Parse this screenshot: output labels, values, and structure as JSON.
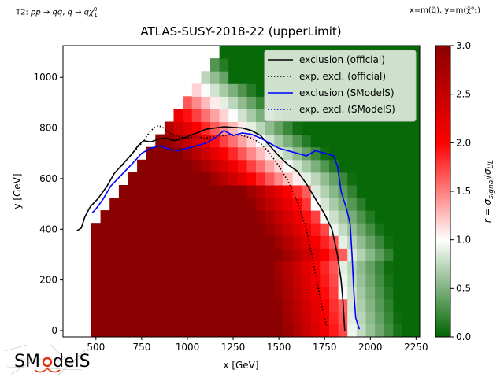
{
  "figure": {
    "process_note": "T2: pp → q̃q̃, q̃ → qχ̃⁰₁",
    "axes_note": "x=m(q̃), y=m(χ̃⁰₁)",
    "logo_text": "SModelS"
  },
  "chart_data": {
    "type": "heatmap",
    "title": "ATLAS-SUSY-2018-22 (upperLimit)",
    "xlabel": "x [GeV]",
    "ylabel": "y [GeV]",
    "colorbar_label": "r = σsignal/σUL",
    "xlim": [
      320,
      2270
    ],
    "ylim": [
      -25,
      1125
    ],
    "xticks": [
      500,
      750,
      1000,
      1250,
      1500,
      1750,
      2000,
      2250
    ],
    "yticks": [
      0,
      200,
      400,
      600,
      800,
      1000
    ],
    "colorbar_range": [
      0.0,
      3.0
    ],
    "colorbar_ticks": [
      0.0,
      0.5,
      1.0,
      1.5,
      2.0,
      2.5,
      3.0
    ],
    "colormap": [
      "#006400",
      "#ffffff",
      "#ff0000",
      "#8b0000"
    ],
    "grid": false,
    "legend_position": "top-right",
    "grid_cells": {
      "x_start": 475,
      "x_step": 50,
      "y_start": -25,
      "y_step": 50,
      "note": "r values per cell"
    },
    "series": [
      {
        "name": "exclusion (official)",
        "color": "#000000",
        "style": "solid",
        "points": [
          [
            395,
            393
          ],
          [
            420,
            405
          ],
          [
            440,
            450
          ],
          [
            470,
            490
          ],
          [
            510,
            520
          ],
          [
            560,
            570
          ],
          [
            600,
            620
          ],
          [
            650,
            660
          ],
          [
            700,
            700
          ],
          [
            730,
            730
          ],
          [
            760,
            750
          ],
          [
            800,
            745
          ],
          [
            840,
            755
          ],
          [
            880,
            760
          ],
          [
            930,
            750
          ],
          [
            980,
            760
          ],
          [
            1050,
            780
          ],
          [
            1100,
            795
          ],
          [
            1200,
            805
          ],
          [
            1300,
            800
          ],
          [
            1350,
            790
          ],
          [
            1400,
            770
          ],
          [
            1450,
            730
          ],
          [
            1500,
            690
          ],
          [
            1550,
            655
          ],
          [
            1600,
            630
          ],
          [
            1650,
            580
          ],
          [
            1700,
            520
          ],
          [
            1750,
            460
          ],
          [
            1790,
            400
          ],
          [
            1820,
            300
          ],
          [
            1840,
            200
          ],
          [
            1850,
            120
          ],
          [
            1860,
            0
          ]
        ]
      },
      {
        "name": "exp. excl. (official)",
        "color": "#000000",
        "style": "dotted",
        "points": [
          [
            640,
            650
          ],
          [
            700,
            700
          ],
          [
            750,
            740
          ],
          [
            800,
            790
          ],
          [
            840,
            810
          ],
          [
            870,
            800
          ],
          [
            900,
            780
          ],
          [
            950,
            765
          ],
          [
            1000,
            760
          ],
          [
            1050,
            765
          ],
          [
            1100,
            760
          ],
          [
            1150,
            765
          ],
          [
            1200,
            770
          ],
          [
            1250,
            775
          ],
          [
            1300,
            770
          ],
          [
            1350,
            760
          ],
          [
            1400,
            740
          ],
          [
            1450,
            700
          ],
          [
            1500,
            650
          ],
          [
            1550,
            590
          ],
          [
            1600,
            510
          ],
          [
            1650,
            400
          ],
          [
            1680,
            300
          ],
          [
            1720,
            150
          ],
          [
            1740,
            80
          ],
          [
            1760,
            20
          ]
        ]
      },
      {
        "name": "exclusion (SModelS)",
        "color": "#0000ff",
        "style": "solid",
        "points": [
          [
            480,
            465
          ],
          [
            500,
            480
          ],
          [
            540,
            520
          ],
          [
            580,
            570
          ],
          [
            620,
            600
          ],
          [
            660,
            630
          ],
          [
            700,
            660
          ],
          [
            750,
            700
          ],
          [
            800,
            720
          ],
          [
            850,
            730
          ],
          [
            900,
            715
          ],
          [
            950,
            710
          ],
          [
            1000,
            720
          ],
          [
            1050,
            730
          ],
          [
            1100,
            740
          ],
          [
            1150,
            760
          ],
          [
            1200,
            790
          ],
          [
            1250,
            770
          ],
          [
            1300,
            780
          ],
          [
            1350,
            775
          ],
          [
            1400,
            760
          ],
          [
            1450,
            740
          ],
          [
            1500,
            720
          ],
          [
            1550,
            710
          ],
          [
            1600,
            700
          ],
          [
            1650,
            690
          ],
          [
            1700,
            710
          ],
          [
            1750,
            700
          ],
          [
            1800,
            690
          ],
          [
            1820,
            650
          ],
          [
            1840,
            550
          ],
          [
            1870,
            480
          ],
          [
            1890,
            420
          ],
          [
            1900,
            300
          ],
          [
            1910,
            150
          ],
          [
            1920,
            50
          ],
          [
            1940,
            5
          ]
        ]
      },
      {
        "name": "exp. excl. (SModelS)",
        "color": "#0000ff",
        "style": "dotted",
        "points": []
      }
    ]
  }
}
